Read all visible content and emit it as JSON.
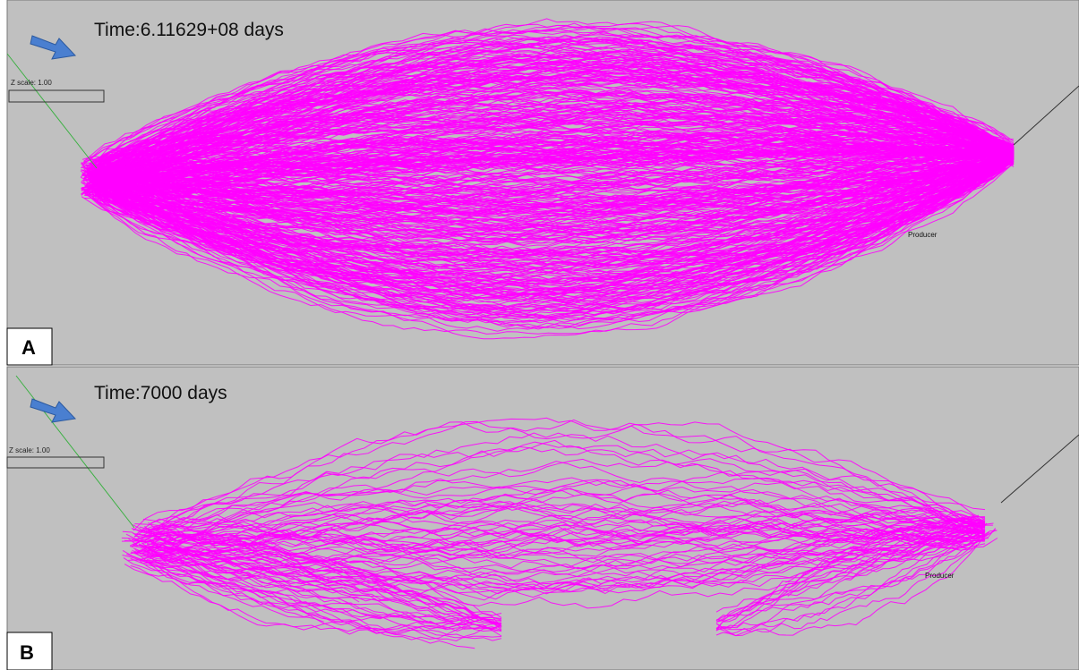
{
  "panels": [
    {
      "label": "A",
      "time": "Time:6.11629+08 days",
      "z_scale": "Z scale: 1.00",
      "well": "Producer"
    },
    {
      "label": "B",
      "time": "Time:7000 days",
      "z_scale": "Z scale: 1.00",
      "well": "Producer"
    }
  ]
}
